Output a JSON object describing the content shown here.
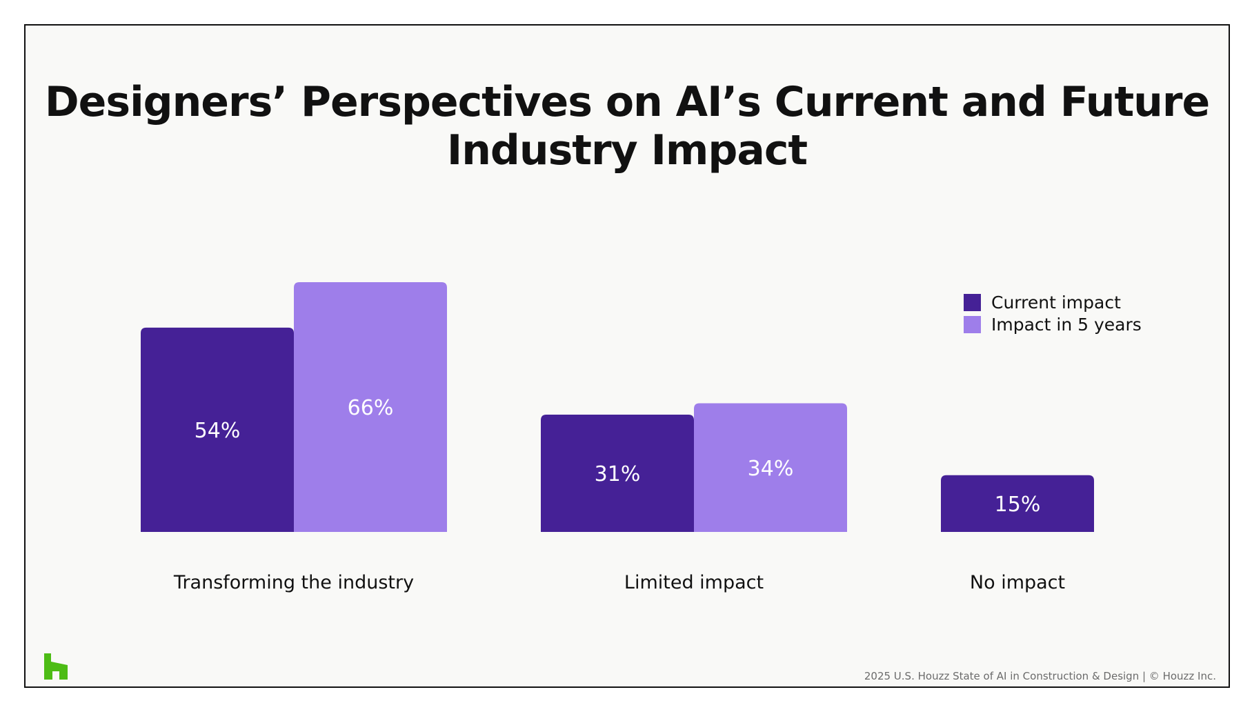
{
  "title": "Designers’ Perspectives on AI’s Current and Future\nIndustry Impact",
  "footer": "2025 U.S. Houzz State of AI in Construction & Design | © Houzz Inc.",
  "logo_icon": "houzz-logo-icon",
  "colors": {
    "current": "#452196",
    "future": "#9e7eea",
    "logo": "#4dbc15",
    "bar_label": "#ffffff"
  },
  "chart_data": {
    "type": "bar",
    "title": "Designers’ Perspectives on AI’s Current and Future Industry Impact",
    "categories": [
      "Transforming the industry",
      "Limited impact",
      "No impact"
    ],
    "series": [
      {
        "name": "Current impact",
        "values": [
          54,
          31,
          15
        ]
      },
      {
        "name": "Impact in 5 years",
        "values": [
          66,
          34,
          null
        ]
      }
    ],
    "value_suffix": "%",
    "ylim": [
      0,
      66
    ],
    "grid": false,
    "legend": "right",
    "xlabel": "",
    "ylabel": ""
  }
}
